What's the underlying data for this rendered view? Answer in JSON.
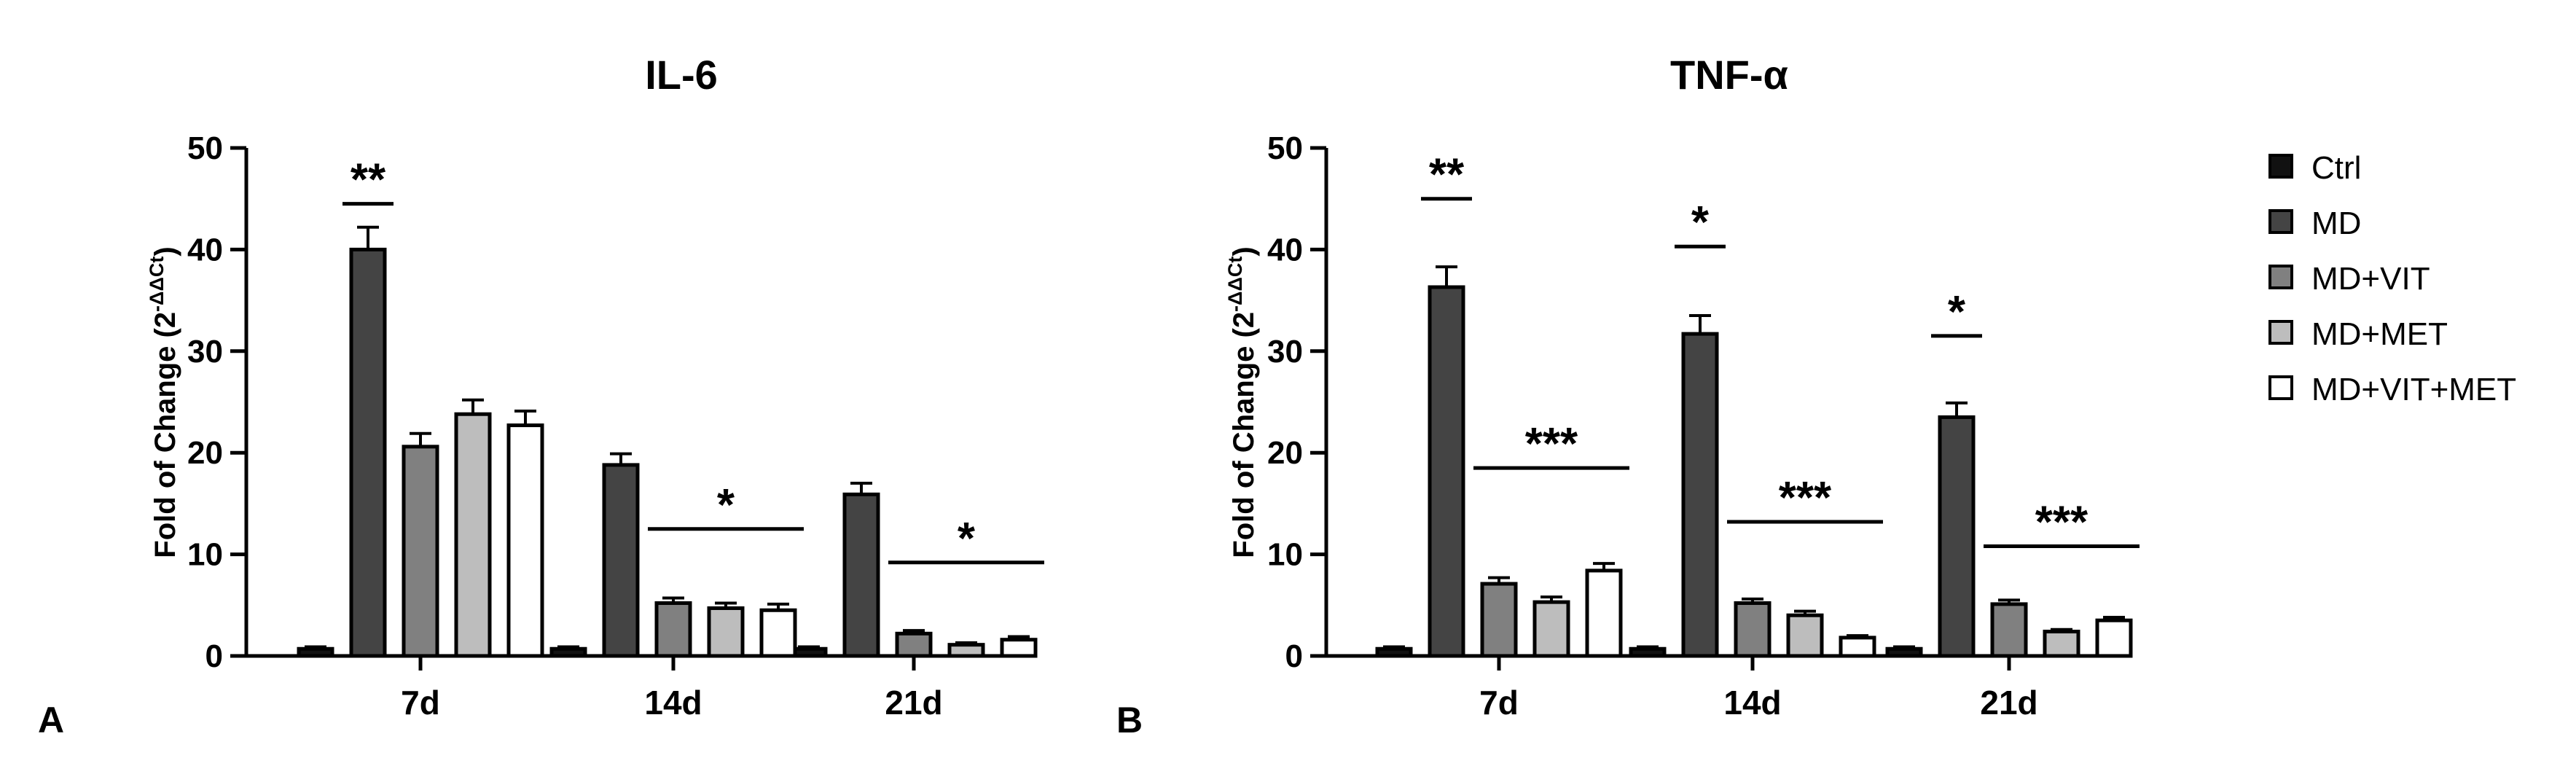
{
  "panels": [
    {
      "letter": "A"
    },
    {
      "letter": "B"
    }
  ],
  "legend": {
    "items": [
      {
        "label": "Ctrl",
        "fill": "#111111"
      },
      {
        "label": "MD",
        "fill": "#444444"
      },
      {
        "label": "MD+VIT",
        "fill": "#808080"
      },
      {
        "label": "MD+MET",
        "fill": "#bdbdbd"
      },
      {
        "label": "MD+VIT+MET",
        "fill": "#ffffff"
      }
    ]
  },
  "chart_data": [
    {
      "type": "bar",
      "title": "IL-6",
      "ylabel": "Fold of Change (2",
      "ylabel_superscript": "-ΔΔCt",
      "ylabel_close": ")",
      "ylim": [
        0,
        50
      ],
      "yticks": [
        "0",
        "10",
        "20",
        "30",
        "40",
        "50"
      ],
      "categories": [
        "7d",
        "14d",
        "21d"
      ],
      "series": [
        {
          "name": "Ctrl",
          "values": [
            0.7,
            0.7,
            0.7
          ],
          "errors": [
            0.2,
            0.2,
            0.2
          ]
        },
        {
          "name": "MD",
          "values": [
            40.0,
            18.8,
            15.9
          ],
          "errors": [
            2.2,
            1.1,
            1.1
          ]
        },
        {
          "name": "MD+VIT",
          "values": [
            20.6,
            5.2,
            2.2
          ],
          "errors": [
            1.3,
            0.5,
            0.3
          ]
        },
        {
          "name": "MD+MET",
          "values": [
            23.8,
            4.7,
            1.1
          ],
          "errors": [
            1.4,
            0.5,
            0.2
          ]
        },
        {
          "name": "MD+VIT+MET",
          "values": [
            22.7,
            4.5,
            1.6
          ],
          "errors": [
            1.4,
            0.6,
            0.3
          ]
        }
      ],
      "annotations": [
        {
          "text": "**",
          "category": "7d",
          "from": 1,
          "to": 1,
          "y": 44.5
        },
        {
          "text": "*",
          "category": "14d",
          "from": 2,
          "to": 4,
          "y": 12.5
        },
        {
          "text": "*",
          "category": "21d",
          "from": 2,
          "to": 4,
          "y": 9.2
        }
      ]
    },
    {
      "type": "bar",
      "title": "TNF-α",
      "ylabel": "Fold of Change (2",
      "ylabel_superscript": "-ΔΔCt",
      "ylabel_close": ")",
      "ylim": [
        0,
        50
      ],
      "yticks": [
        "0",
        "10",
        "20",
        "30",
        "40",
        "50"
      ],
      "categories": [
        "7d",
        "14d",
        "21d"
      ],
      "series": [
        {
          "name": "Ctrl",
          "values": [
            0.7,
            0.7,
            0.7
          ],
          "errors": [
            0.2,
            0.2,
            0.2
          ]
        },
        {
          "name": "MD",
          "values": [
            36.3,
            31.7,
            23.5
          ],
          "errors": [
            2.0,
            1.8,
            1.4
          ]
        },
        {
          "name": "MD+VIT",
          "values": [
            7.1,
            5.2,
            5.1
          ],
          "errors": [
            0.6,
            0.4,
            0.4
          ]
        },
        {
          "name": "MD+MET",
          "values": [
            5.3,
            4.0,
            2.4
          ],
          "errors": [
            0.5,
            0.4,
            0.2
          ]
        },
        {
          "name": "MD+VIT+MET",
          "values": [
            8.4,
            1.8,
            3.5
          ],
          "errors": [
            0.7,
            0.2,
            0.3
          ]
        }
      ],
      "annotations": [
        {
          "text": "**",
          "category": "7d",
          "from": 1,
          "to": 1,
          "y": 45.0
        },
        {
          "text": "***",
          "category": "7d",
          "from": 2,
          "to": 4,
          "y": 18.5
        },
        {
          "text": "*",
          "category": "14d",
          "from": 1,
          "to": 1,
          "y": 40.3
        },
        {
          "text": "***",
          "category": "14d",
          "from": 2,
          "to": 4,
          "y": 13.2
        },
        {
          "text": "*",
          "category": "21d",
          "from": 1,
          "to": 1,
          "y": 31.5
        },
        {
          "text": "***",
          "category": "21d",
          "from": 2,
          "to": 4,
          "y": 10.8
        }
      ]
    }
  ]
}
